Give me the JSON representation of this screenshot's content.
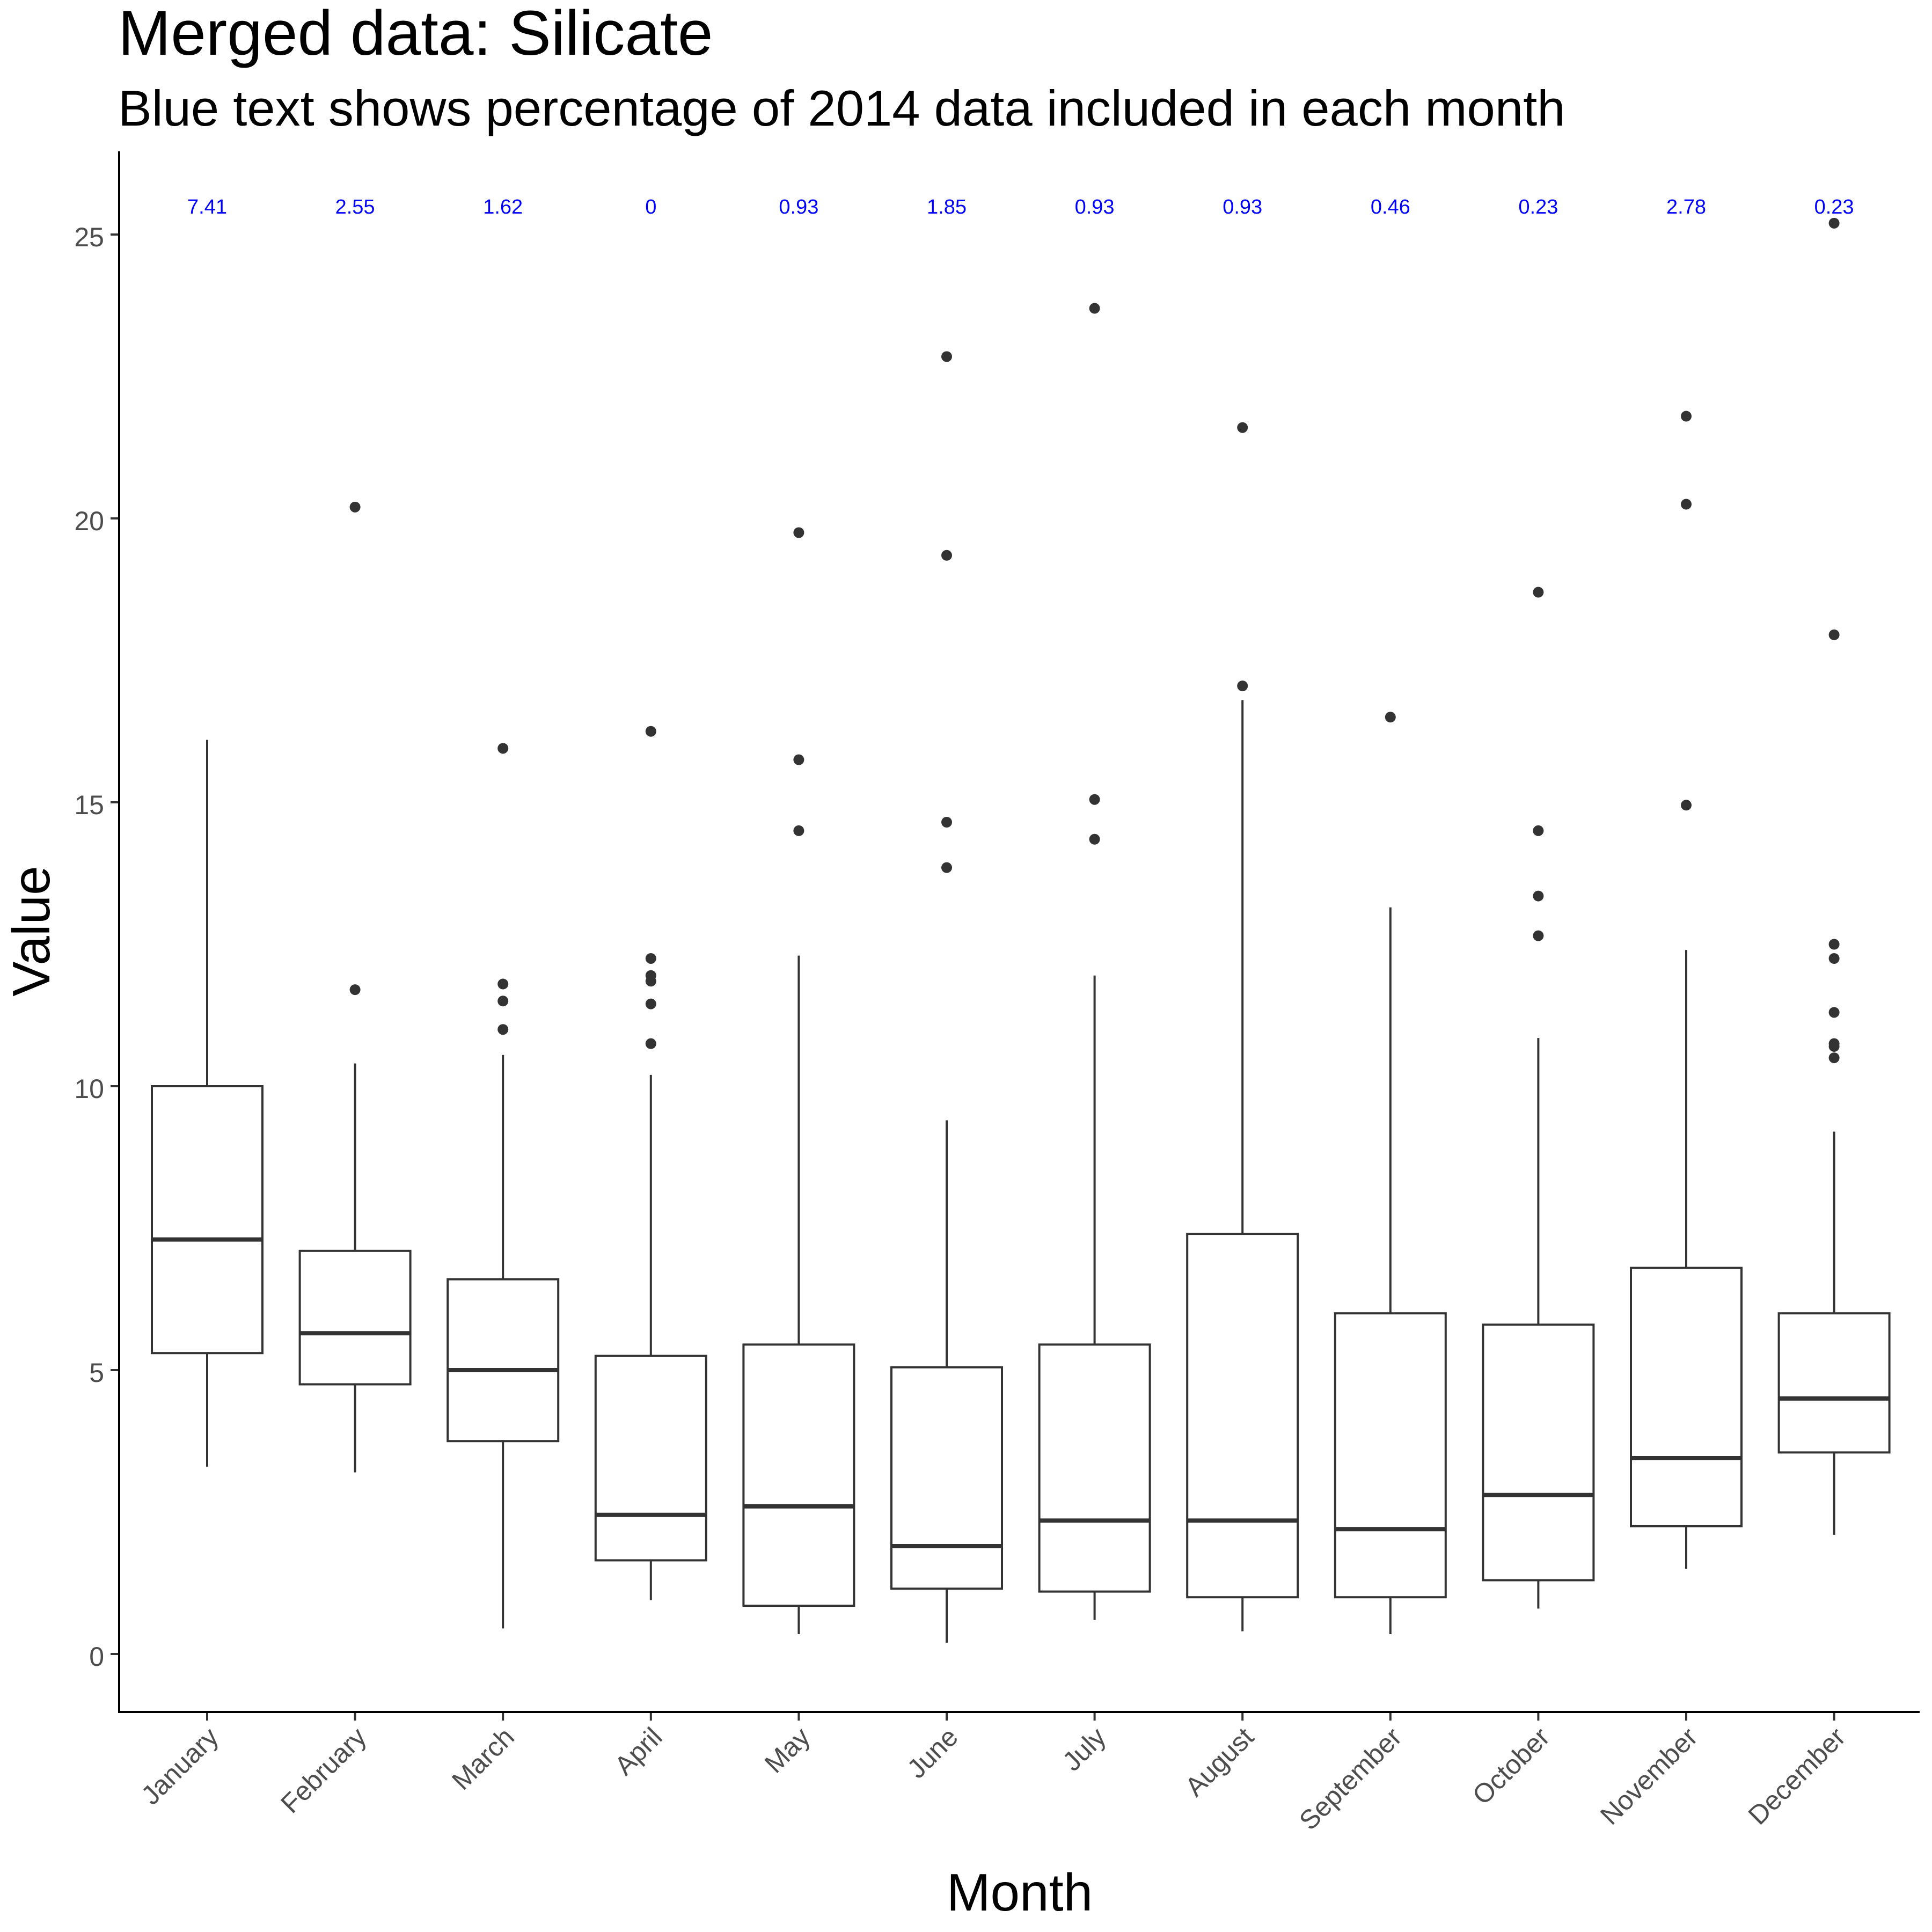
{
  "chart_data": {
    "type": "boxplot",
    "title": "Merged data: Silicate",
    "subtitle": "Blue text shows percentage of 2014 data included in each month",
    "xlabel": "Month",
    "ylabel": "Value",
    "ylim": [
      -1.0,
      26.4
    ],
    "yticks": [
      0,
      5,
      10,
      15,
      20,
      25
    ],
    "grid": false,
    "annotation_color": "#0000ff",
    "box_color": "#333333",
    "categories": [
      "January",
      "February",
      "March",
      "April",
      "May",
      "June",
      "July",
      "August",
      "September",
      "October",
      "November",
      "December"
    ],
    "percent_2014": [
      "7.41",
      "2.55",
      "1.62",
      "0",
      "0.93",
      "1.85",
      "0.93",
      "0.93",
      "0.46",
      "0.23",
      "2.78",
      "0.23"
    ],
    "boxes": [
      {
        "month": "January",
        "whisker_low": 3.3,
        "q1": 5.3,
        "median": 7.3,
        "q3": 10.0,
        "whisker_high": 16.1,
        "outliers": []
      },
      {
        "month": "February",
        "whisker_low": 3.2,
        "q1": 4.75,
        "median": 5.65,
        "q3": 7.1,
        "whisker_high": 10.4,
        "outliers": [
          11.7,
          20.2
        ]
      },
      {
        "month": "March",
        "whisker_low": 0.45,
        "q1": 3.75,
        "median": 5.0,
        "q3": 6.6,
        "whisker_high": 10.55,
        "outliers": [
          11.0,
          11.5,
          11.8,
          15.95
        ]
      },
      {
        "month": "April",
        "whisker_low": 0.95,
        "q1": 1.65,
        "median": 2.45,
        "q3": 5.25,
        "whisker_high": 10.2,
        "outliers": [
          10.75,
          11.45,
          11.85,
          11.95,
          12.25,
          16.25
        ]
      },
      {
        "month": "May",
        "whisker_low": 0.35,
        "q1": 0.85,
        "median": 2.6,
        "q3": 5.45,
        "whisker_high": 12.3,
        "outliers": [
          14.5,
          15.75,
          19.75
        ]
      },
      {
        "month": "June",
        "whisker_low": 0.2,
        "q1": 1.15,
        "median": 1.9,
        "q3": 5.05,
        "whisker_high": 9.4,
        "outliers": [
          13.85,
          14.65,
          19.35,
          22.85
        ]
      },
      {
        "month": "July",
        "whisker_low": 0.6,
        "q1": 1.1,
        "median": 2.35,
        "q3": 5.45,
        "whisker_high": 11.95,
        "outliers": [
          14.35,
          15.05,
          23.7
        ]
      },
      {
        "month": "August",
        "whisker_low": 0.4,
        "q1": 1.0,
        "median": 2.35,
        "q3": 7.4,
        "whisker_high": 16.8,
        "outliers": [
          17.05,
          21.6
        ]
      },
      {
        "month": "September",
        "whisker_low": 0.35,
        "q1": 1.0,
        "median": 2.2,
        "q3": 6.0,
        "whisker_high": 13.15,
        "outliers": [
          16.5
        ]
      },
      {
        "month": "October",
        "whisker_low": 0.8,
        "q1": 1.3,
        "median": 2.8,
        "q3": 5.8,
        "whisker_high": 10.85,
        "outliers": [
          12.65,
          13.35,
          14.5,
          18.7
        ]
      },
      {
        "month": "November",
        "whisker_low": 1.5,
        "q1": 2.25,
        "median": 3.45,
        "q3": 6.8,
        "whisker_high": 12.4,
        "outliers": [
          14.95,
          20.25,
          21.8
        ]
      },
      {
        "month": "December",
        "whisker_low": 2.1,
        "q1": 3.55,
        "median": 4.5,
        "q3": 6.0,
        "whisker_high": 9.2,
        "outliers": [
          10.5,
          10.7,
          10.75,
          11.3,
          12.25,
          12.5,
          17.95,
          25.2
        ]
      }
    ]
  }
}
